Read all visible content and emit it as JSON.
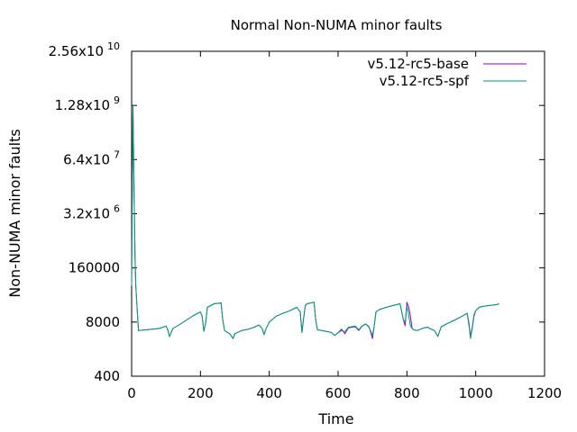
{
  "chart_data": {
    "type": "line",
    "title": "Normal Non-NUMA minor faults",
    "xlabel": "Time",
    "ylabel": "Non-NUMA minor faults",
    "xlim": [
      0,
      1200
    ],
    "ylim": [
      400,
      25600000000
    ],
    "yscale": "log",
    "grid": false,
    "legend_position": "top-right",
    "x_ticks": [
      {
        "value": 0,
        "label": "0"
      },
      {
        "value": 200,
        "label": "200"
      },
      {
        "value": 400,
        "label": "400"
      },
      {
        "value": 600,
        "label": "600"
      },
      {
        "value": 800,
        "label": "800"
      },
      {
        "value": 1000,
        "label": "1000"
      },
      {
        "value": 1200,
        "label": "1200"
      }
    ],
    "y_ticks": [
      {
        "value": 400,
        "base": "400",
        "exp": ""
      },
      {
        "value": 8000,
        "base": "8000",
        "exp": ""
      },
      {
        "value": 160000,
        "base": "160000",
        "exp": ""
      },
      {
        "value": 3200000,
        "base": "3.2x10",
        "exp": "6"
      },
      {
        "value": 64000000,
        "base": "6.4x10",
        "exp": "7"
      },
      {
        "value": 1280000000,
        "base": "1.28x10",
        "exp": "9"
      },
      {
        "value": 25600000000,
        "base": "2.56x10",
        "exp": "10"
      }
    ],
    "series": [
      {
        "name": "v5.12-rc5-base",
        "color": "#9400d3",
        "points": [
          [
            0,
            60000
          ],
          [
            2,
            20000000
          ],
          [
            4,
            1200000000
          ],
          [
            6,
            60000000
          ],
          [
            8,
            3000000
          ],
          [
            10,
            300000
          ],
          [
            12,
            60000
          ],
          [
            20,
            5000
          ],
          [
            40,
            5200
          ],
          [
            60,
            5400
          ],
          [
            80,
            5600
          ],
          [
            100,
            6400
          ],
          [
            105,
            5200
          ],
          [
            110,
            3600
          ],
          [
            120,
            5600
          ],
          [
            140,
            7000
          ],
          [
            160,
            9000
          ],
          [
            180,
            11500
          ],
          [
            200,
            14000
          ],
          [
            205,
            11000
          ],
          [
            210,
            4800
          ],
          [
            215,
            7500
          ],
          [
            220,
            18000
          ],
          [
            240,
            22000
          ],
          [
            260,
            23000
          ],
          [
            265,
            9000
          ],
          [
            270,
            5000
          ],
          [
            285,
            4200
          ],
          [
            295,
            3200
          ],
          [
            300,
            4200
          ],
          [
            320,
            5000
          ],
          [
            340,
            5400
          ],
          [
            360,
            6200
          ],
          [
            370,
            6800
          ],
          [
            380,
            5500
          ],
          [
            385,
            4000
          ],
          [
            390,
            5400
          ],
          [
            400,
            8000
          ],
          [
            420,
            11000
          ],
          [
            440,
            13000
          ],
          [
            460,
            15000
          ],
          [
            480,
            18000
          ],
          [
            490,
            14000
          ],
          [
            495,
            4500
          ],
          [
            500,
            10000
          ],
          [
            505,
            20000
          ],
          [
            510,
            22000
          ],
          [
            520,
            23000
          ],
          [
            530,
            24000
          ],
          [
            535,
            9000
          ],
          [
            540,
            5200
          ],
          [
            560,
            4900
          ],
          [
            580,
            4500
          ],
          [
            590,
            3800
          ],
          [
            600,
            4400
          ],
          [
            610,
            5400
          ],
          [
            620,
            4200
          ],
          [
            630,
            5800
          ],
          [
            650,
            6200
          ],
          [
            660,
            5000
          ],
          [
            670,
            6400
          ],
          [
            680,
            7200
          ],
          [
            690,
            6200
          ],
          [
            700,
            3200
          ],
          [
            705,
            6500
          ],
          [
            710,
            14000
          ],
          [
            720,
            16000
          ],
          [
            740,
            18000
          ],
          [
            760,
            20000
          ],
          [
            780,
            22000
          ],
          [
            790,
            9000
          ],
          [
            795,
            6500
          ],
          [
            800,
            24000
          ],
          [
            805,
            19000
          ],
          [
            810,
            11000
          ],
          [
            815,
            5600
          ],
          [
            820,
            5200
          ],
          [
            830,
            5000
          ],
          [
            840,
            5400
          ],
          [
            850,
            5800
          ],
          [
            860,
            6000
          ],
          [
            870,
            5400
          ],
          [
            880,
            5000
          ],
          [
            890,
            3600
          ],
          [
            895,
            4800
          ],
          [
            900,
            6200
          ],
          [
            920,
            7500
          ],
          [
            940,
            9000
          ],
          [
            960,
            11000
          ],
          [
            975,
            13000
          ],
          [
            980,
            8000
          ],
          [
            985,
            3600
          ],
          [
            990,
            6000
          ],
          [
            995,
            12000
          ],
          [
            1000,
            15000
          ],
          [
            1010,
            18000
          ],
          [
            1020,
            19000
          ],
          [
            1040,
            20000
          ],
          [
            1060,
            21000
          ],
          [
            1068,
            22000
          ]
        ]
      },
      {
        "name": "v5.12-rc5-spf",
        "color": "#009e73",
        "points": [
          [
            0,
            60000
          ],
          [
            2,
            20000000
          ],
          [
            4,
            1200000000
          ],
          [
            6,
            60000000
          ],
          [
            8,
            3000000
          ],
          [
            10,
            300000
          ],
          [
            12,
            60000
          ],
          [
            20,
            5000
          ],
          [
            40,
            5200
          ],
          [
            60,
            5400
          ],
          [
            80,
            5600
          ],
          [
            100,
            6400
          ],
          [
            105,
            5200
          ],
          [
            110,
            3600
          ],
          [
            120,
            5600
          ],
          [
            140,
            7000
          ],
          [
            160,
            9000
          ],
          [
            180,
            11500
          ],
          [
            200,
            14000
          ],
          [
            205,
            11000
          ],
          [
            210,
            4800
          ],
          [
            215,
            7500
          ],
          [
            220,
            18000
          ],
          [
            240,
            22000
          ],
          [
            260,
            23000
          ],
          [
            265,
            9000
          ],
          [
            270,
            5000
          ],
          [
            285,
            4200
          ],
          [
            295,
            3200
          ],
          [
            300,
            4200
          ],
          [
            320,
            5000
          ],
          [
            340,
            5400
          ],
          [
            360,
            6200
          ],
          [
            370,
            6800
          ],
          [
            380,
            5500
          ],
          [
            385,
            4000
          ],
          [
            390,
            5400
          ],
          [
            400,
            8000
          ],
          [
            420,
            11000
          ],
          [
            440,
            13000
          ],
          [
            460,
            15000
          ],
          [
            480,
            18000
          ],
          [
            490,
            14000
          ],
          [
            495,
            4500
          ],
          [
            500,
            10000
          ],
          [
            505,
            20000
          ],
          [
            510,
            22000
          ],
          [
            520,
            23000
          ],
          [
            530,
            24000
          ],
          [
            535,
            9000
          ],
          [
            540,
            5200
          ],
          [
            560,
            4900
          ],
          [
            580,
            4500
          ],
          [
            590,
            3800
          ],
          [
            600,
            4400
          ],
          [
            610,
            5000
          ],
          [
            620,
            4700
          ],
          [
            630,
            6000
          ],
          [
            650,
            6400
          ],
          [
            660,
            5200
          ],
          [
            670,
            6500
          ],
          [
            680,
            7200
          ],
          [
            690,
            6000
          ],
          [
            700,
            3800
          ],
          [
            705,
            6500
          ],
          [
            710,
            14000
          ],
          [
            720,
            16000
          ],
          [
            740,
            18000
          ],
          [
            760,
            20000
          ],
          [
            780,
            22000
          ],
          [
            790,
            9000
          ],
          [
            795,
            8000
          ],
          [
            800,
            20000
          ],
          [
            805,
            12000
          ],
          [
            810,
            6500
          ],
          [
            815,
            5600
          ],
          [
            820,
            5200
          ],
          [
            830,
            5000
          ],
          [
            840,
            5400
          ],
          [
            850,
            5800
          ],
          [
            860,
            6000
          ],
          [
            870,
            5400
          ],
          [
            880,
            5000
          ],
          [
            890,
            3600
          ],
          [
            895,
            4800
          ],
          [
            900,
            6200
          ],
          [
            920,
            7500
          ],
          [
            940,
            9000
          ],
          [
            960,
            11000
          ],
          [
            975,
            13000
          ],
          [
            980,
            7000
          ],
          [
            985,
            3200
          ],
          [
            990,
            5500
          ],
          [
            995,
            11000
          ],
          [
            1000,
            15000
          ],
          [
            1010,
            18000
          ],
          [
            1020,
            19000
          ],
          [
            1040,
            20000
          ],
          [
            1060,
            21000
          ],
          [
            1068,
            22000
          ]
        ]
      }
    ]
  }
}
